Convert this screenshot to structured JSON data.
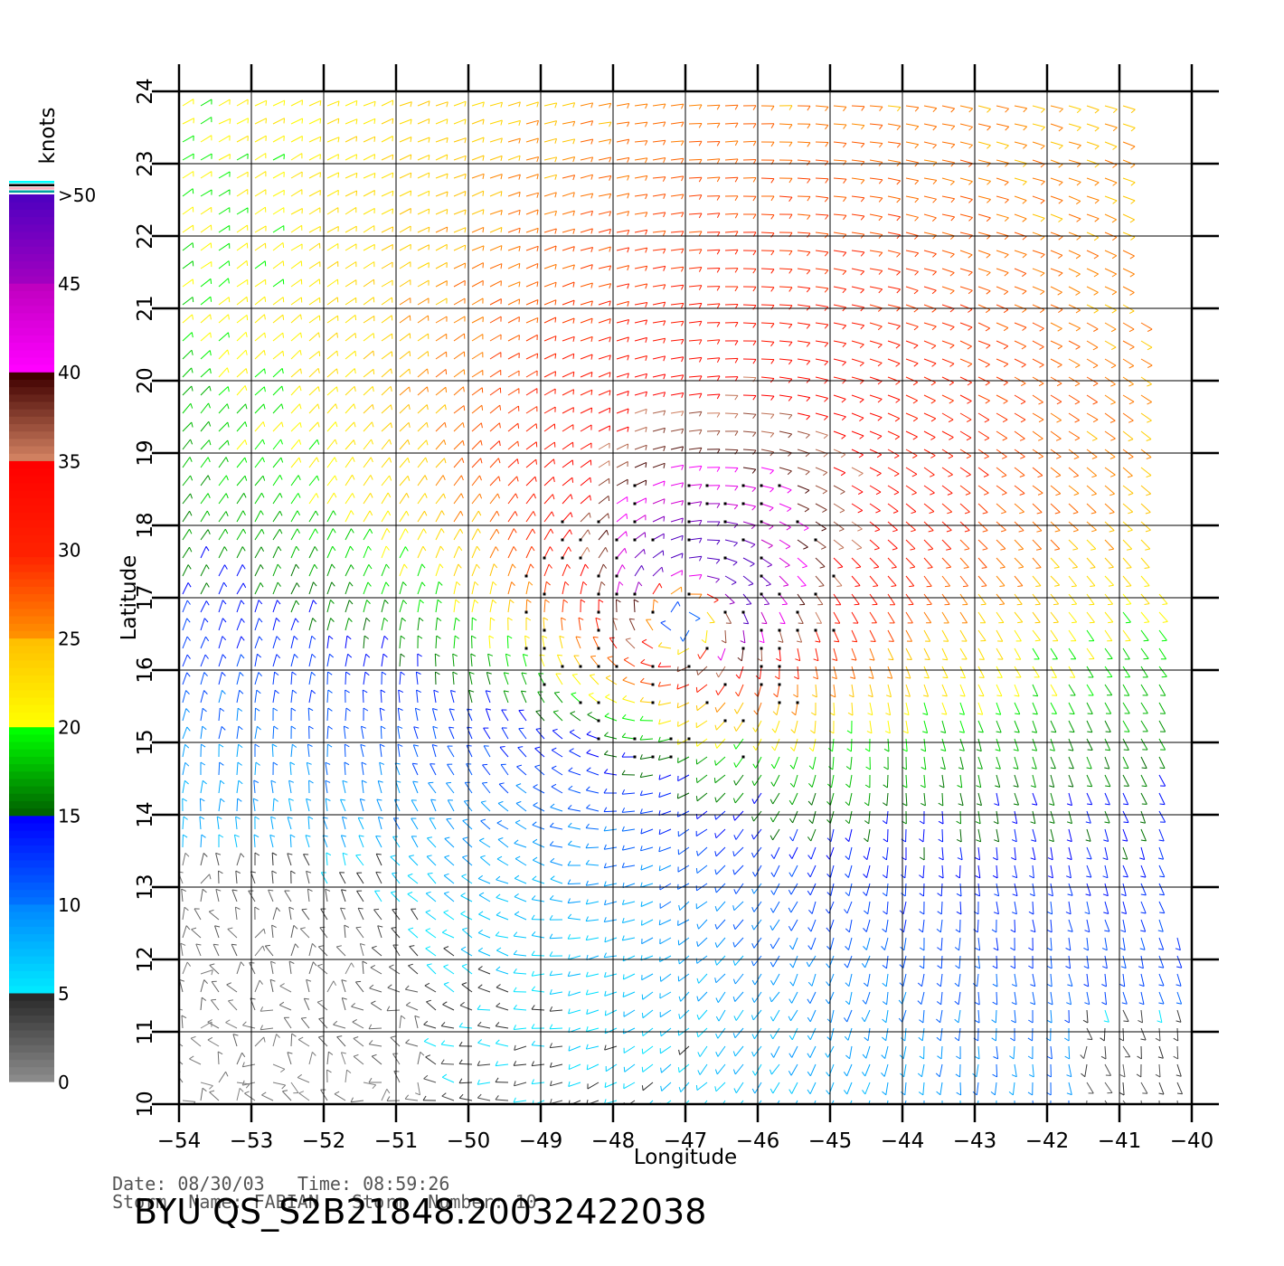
{
  "chart_data": {
    "type": "wind-vector-field",
    "xlabel": "Longitude",
    "ylabel": "Latitude",
    "xlim": [
      -54,
      -40
    ],
    "ylim": [
      10,
      24
    ],
    "x_ticks": [
      "-54",
      "-53",
      "-52",
      "-51",
      "-50",
      "-49",
      "-48",
      "-47",
      "-46",
      "-45",
      "-44",
      "-43",
      "-42",
      "-41",
      "-40"
    ],
    "y_ticks": [
      "10",
      "11",
      "12",
      "13",
      "14",
      "15",
      "16",
      "17",
      "18",
      "19",
      "20",
      "21",
      "22",
      "23",
      "24"
    ],
    "grid": true,
    "storm_center": {
      "lon": -47.0,
      "lat": 16.8
    },
    "colorbar": {
      "unit_label": "knots",
      "tick_labels": [
        "0",
        "5",
        "10",
        "15",
        "20",
        "25",
        "30",
        "35",
        "40",
        "45",
        ">50"
      ],
      "bands": [
        {
          "from": 0,
          "to": 5,
          "colors": [
            "#8a8a8a",
            "#2a2a2a"
          ]
        },
        {
          "from": 5,
          "to": 10,
          "colors": [
            "#00e8ff",
            "#0088ff"
          ]
        },
        {
          "from": 10,
          "to": 15,
          "colors": [
            "#0070ff",
            "#0000ff"
          ]
        },
        {
          "from": 15,
          "to": 20,
          "colors": [
            "#006400",
            "#00ff00"
          ]
        },
        {
          "from": 20,
          "to": 25,
          "colors": [
            "#ffff00",
            "#ffc000"
          ]
        },
        {
          "from": 25,
          "to": 30,
          "colors": [
            "#ff9000",
            "#ff2000"
          ]
        },
        {
          "from": 30,
          "to": 35,
          "colors": [
            "#ff2000",
            "#ff0000"
          ]
        },
        {
          "from": 35,
          "to": 40,
          "colors": [
            "#d08060",
            "#400000"
          ]
        },
        {
          "from": 40,
          "to": 45,
          "colors": [
            "#ff00ff",
            "#c000c0"
          ]
        },
        {
          "from": 45,
          "to": 50,
          "colors": [
            "#a000c0",
            "#5000c0"
          ]
        }
      ]
    }
  },
  "info": {
    "date_label": "Date:",
    "date": "08/30/03",
    "time_label": "Time:",
    "time": "08:59:26",
    "storm_name_label": "Storm  Name:",
    "storm_name": "FABIAN",
    "storm_number_label": "Storm  Number:",
    "storm_number": "10"
  },
  "title": "BYU  QS_S2B21848.20032422038"
}
